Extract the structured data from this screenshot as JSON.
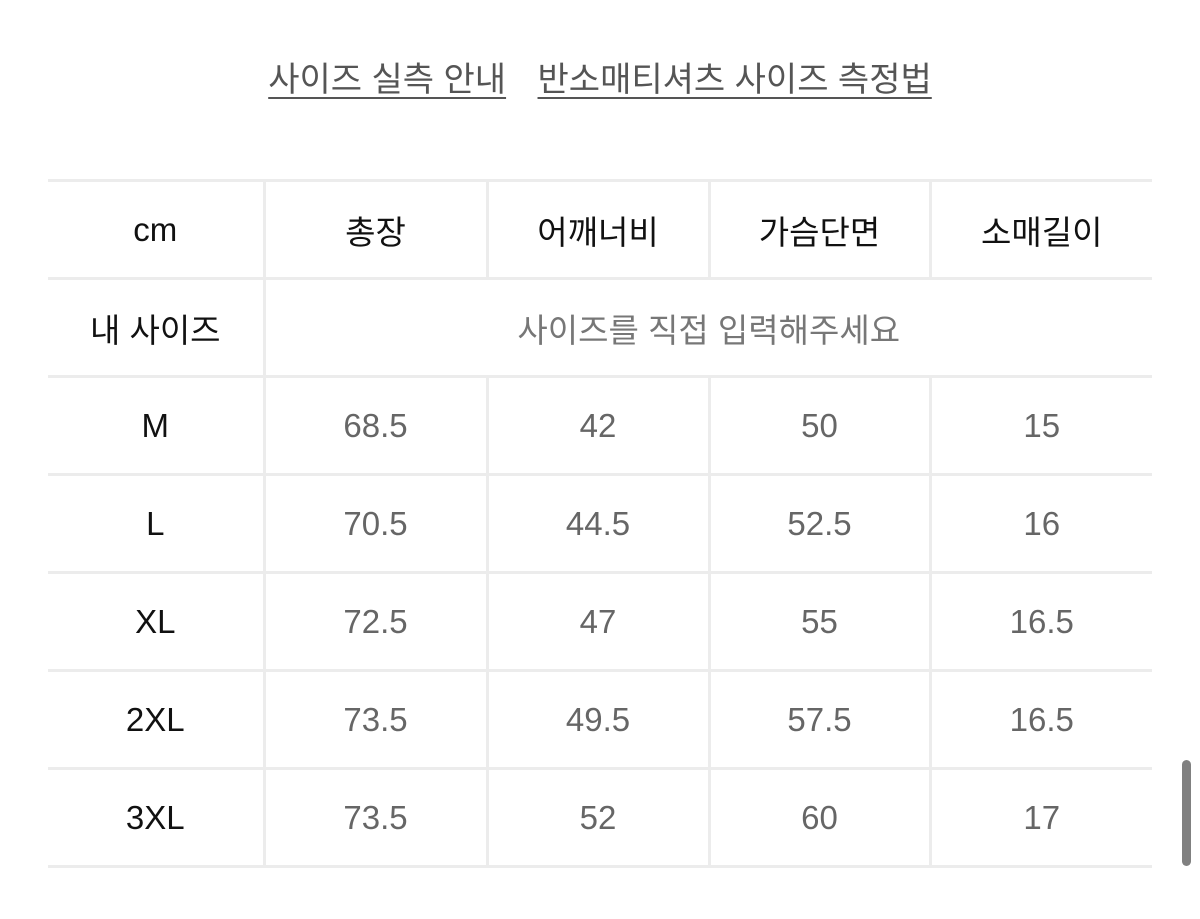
{
  "links": [
    "사이즈 실측 안내",
    "반소매티셔츠 사이즈 측정법"
  ],
  "table": {
    "headers": [
      "cm",
      "총장",
      "어깨너비",
      "가슴단면",
      "소매길이"
    ],
    "my_size": {
      "label": "내 사이즈",
      "placeholder": "사이즈를 직접 입력해주세요"
    },
    "rows": [
      [
        "M",
        "68.5",
        "42",
        "50",
        "15"
      ],
      [
        "L",
        "70.5",
        "44.5",
        "52.5",
        "16"
      ],
      [
        "XL",
        "72.5",
        "47",
        "55",
        "16.5"
      ],
      [
        "2XL",
        "73.5",
        "49.5",
        "57.5",
        "16.5"
      ],
      [
        "3XL",
        "73.5",
        "52",
        "60",
        "17"
      ]
    ]
  }
}
